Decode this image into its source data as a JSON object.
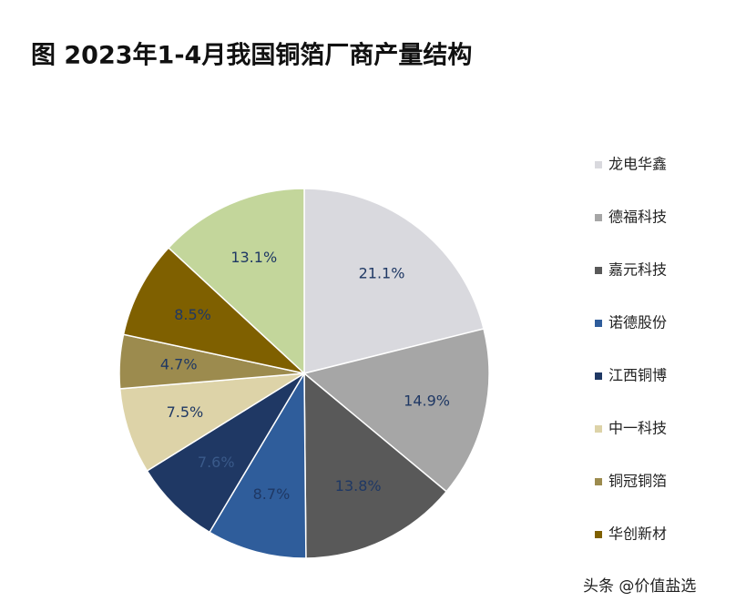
{
  "chart_data": {
    "type": "pie",
    "title": "图 2023年1-4月我国铜箔厂商产量结构",
    "categories": [
      "龙电华鑫",
      "德福科技",
      "嘉元科技",
      "诺德股份",
      "江西铜博",
      "中一科技",
      "铜冠铜箔",
      "华创新材",
      null
    ],
    "values": [
      21.1,
      14.9,
      13.8,
      8.7,
      7.6,
      7.5,
      4.7,
      8.5,
      13.1
    ],
    "value_labels": [
      "21.1%",
      "14.9%",
      "13.8%",
      "8.7%",
      "7.6%",
      "7.5%",
      "4.7%",
      "8.5%",
      "13.1%"
    ],
    "colors": [
      "#d9d9de",
      "#a6a6a6",
      "#595959",
      "#2f5d9b",
      "#1f3864",
      "#ddd3a8",
      "#9c8b4e",
      "#7f6000",
      "#c3d69b"
    ],
    "legend": "right"
  },
  "watermark": "头条 @价值盐选"
}
